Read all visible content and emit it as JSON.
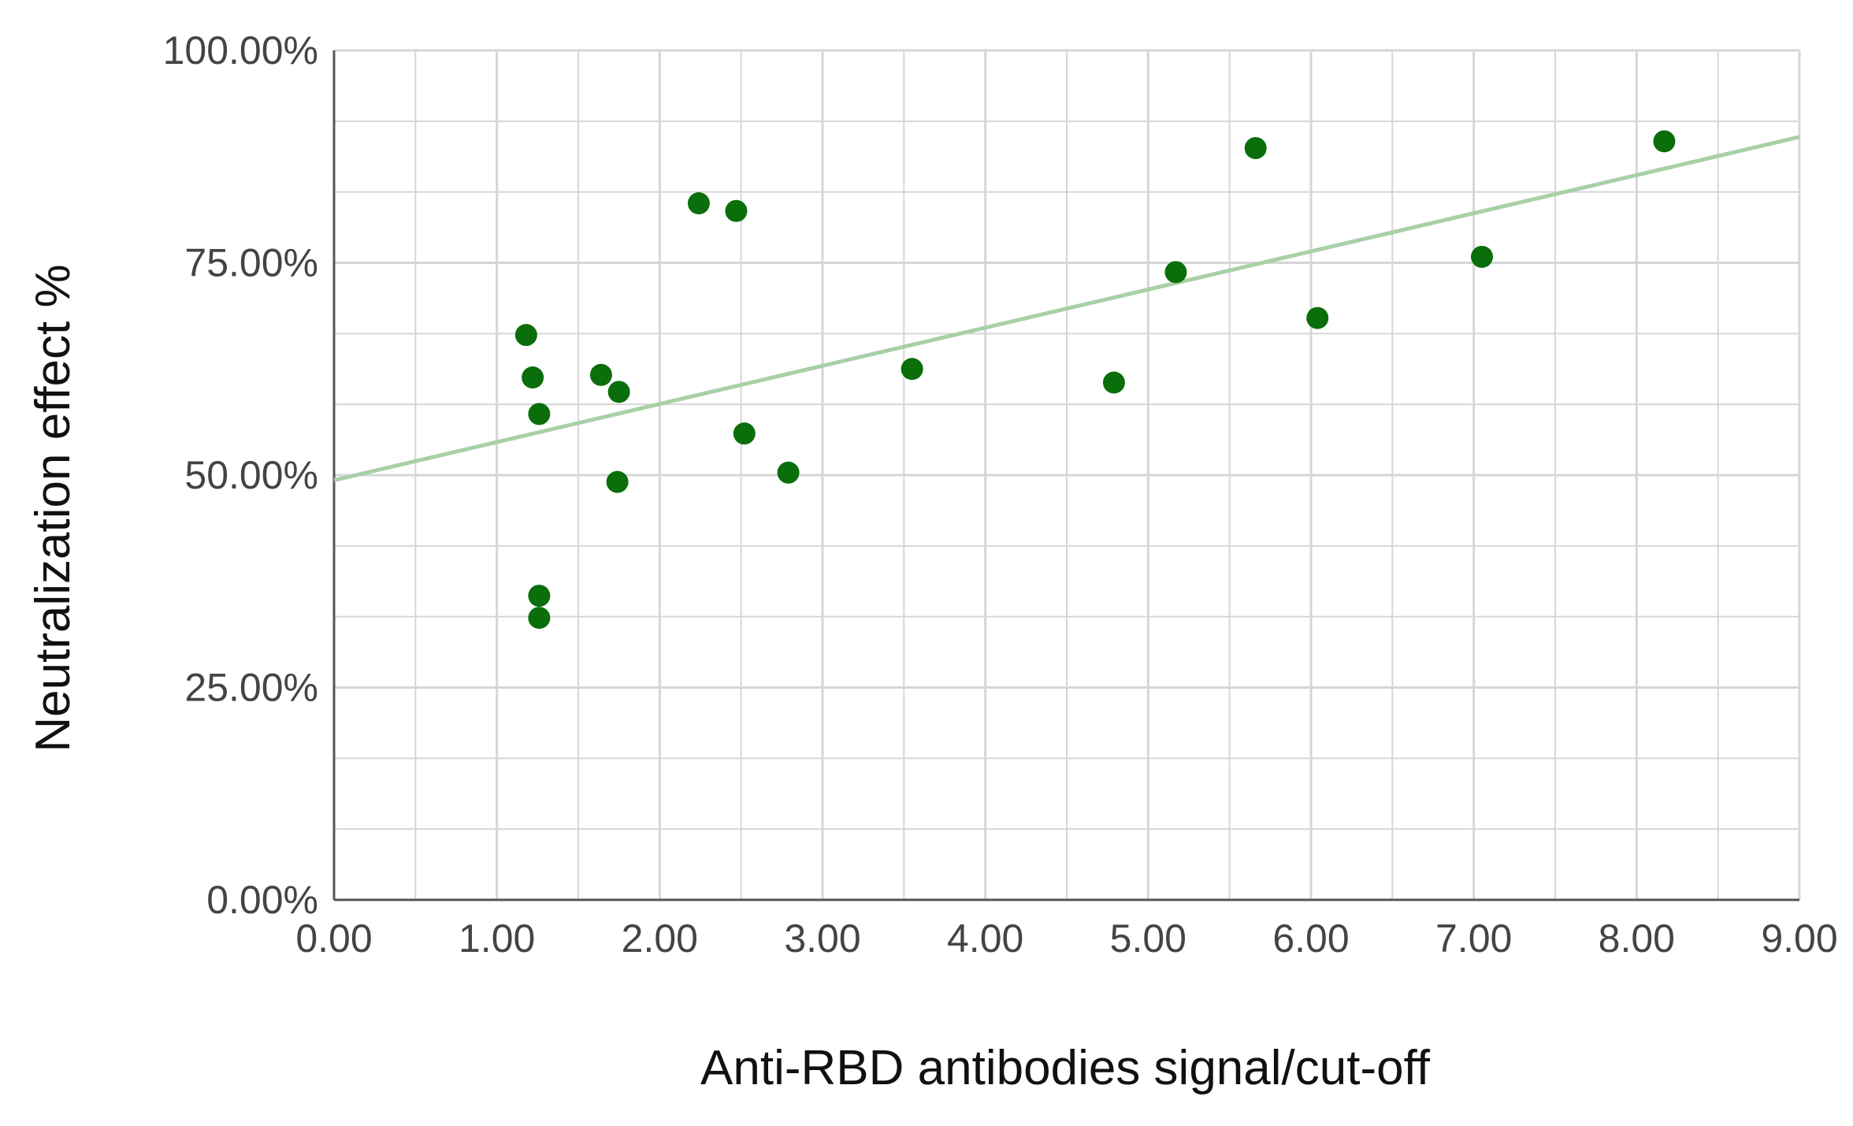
{
  "chart_data": {
    "type": "scatter",
    "title": "",
    "xlabel": "Anti-RBD antibodies signal/cut-off",
    "ylabel": "Neutralization effect %",
    "xlim": [
      0,
      9
    ],
    "ylim": [
      0,
      100
    ],
    "x_ticks": [
      {
        "value": 0,
        "label": "0.00"
      },
      {
        "value": 1,
        "label": "1.00"
      },
      {
        "value": 2,
        "label": "2.00"
      },
      {
        "value": 3,
        "label": "3.00"
      },
      {
        "value": 4,
        "label": "4.00"
      },
      {
        "value": 5,
        "label": "5.00"
      },
      {
        "value": 6,
        "label": "6.00"
      },
      {
        "value": 7,
        "label": "7.00"
      },
      {
        "value": 8,
        "label": "8.00"
      },
      {
        "value": 9,
        "label": "9.00"
      }
    ],
    "y_ticks": [
      {
        "value": 0,
        "label": "0.00%"
      },
      {
        "value": 25,
        "label": "25.00%"
      },
      {
        "value": 50,
        "label": "50.00%"
      },
      {
        "value": 75,
        "label": "75.00%"
      },
      {
        "value": 100,
        "label": "100.00%"
      }
    ],
    "grid": true,
    "minor_grid": true,
    "points": [
      {
        "x": 1.18,
        "y": 66.5
      },
      {
        "x": 1.22,
        "y": 61.5
      },
      {
        "x": 1.26,
        "y": 57.2
      },
      {
        "x": 1.26,
        "y": 35.8
      },
      {
        "x": 1.26,
        "y": 33.2
      },
      {
        "x": 1.64,
        "y": 61.8
      },
      {
        "x": 1.75,
        "y": 59.8
      },
      {
        "x": 1.74,
        "y": 49.2
      },
      {
        "x": 2.24,
        "y": 82.0
      },
      {
        "x": 2.47,
        "y": 81.1
      },
      {
        "x": 2.52,
        "y": 54.9
      },
      {
        "x": 2.79,
        "y": 50.3
      },
      {
        "x": 3.55,
        "y": 62.5
      },
      {
        "x": 4.79,
        "y": 60.9
      },
      {
        "x": 5.17,
        "y": 73.9
      },
      {
        "x": 5.66,
        "y": 88.5
      },
      {
        "x": 6.04,
        "y": 68.5
      },
      {
        "x": 7.05,
        "y": 75.7
      },
      {
        "x": 8.17,
        "y": 89.3
      }
    ],
    "trendline": {
      "intercept": 49.4,
      "slope": 4.49
    },
    "colors": {
      "points": "#0a6e0a",
      "trendline": "#a9cfa7",
      "grid": "#d6d6d6",
      "axis": "#555555"
    }
  }
}
